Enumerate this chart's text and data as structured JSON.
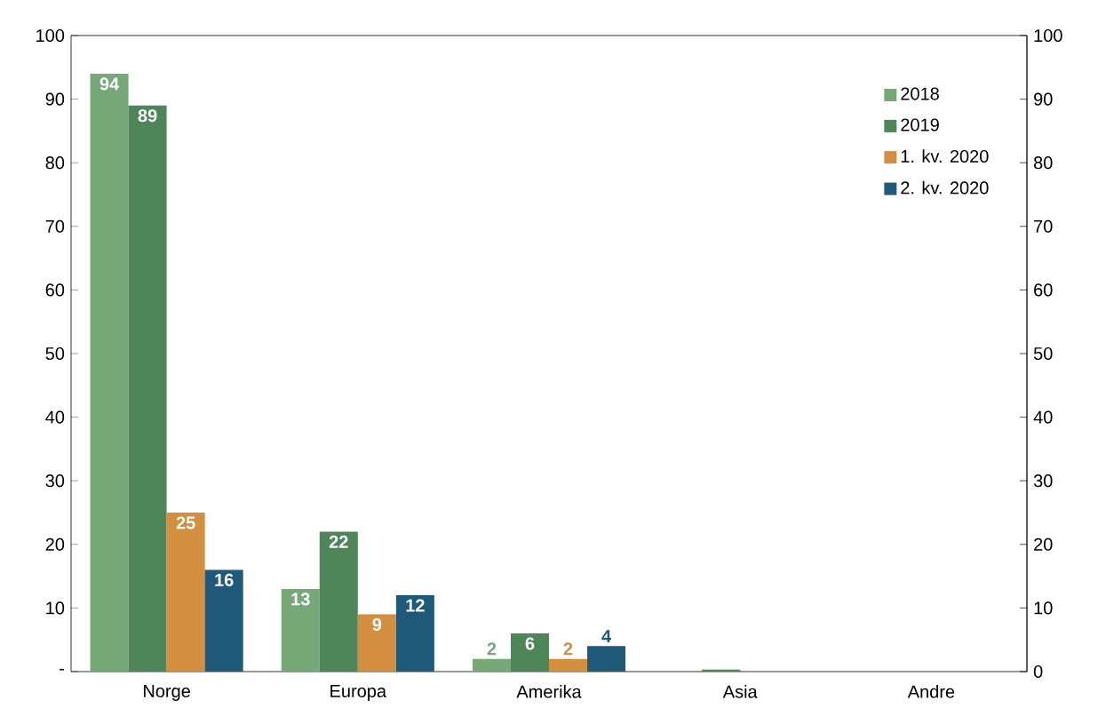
{
  "chart_data": {
    "type": "bar",
    "categories": [
      "Norge",
      "Europa",
      "Amerika",
      "Asia",
      "Andre"
    ],
    "series": [
      {
        "name": "2018",
        "color": "#76a878",
        "values": [
          94,
          13,
          2,
          0,
          0
        ],
        "value_labels": [
          "94",
          "13",
          "2",
          null,
          null
        ]
      },
      {
        "name": "2019",
        "color": "#4e8559",
        "values": [
          89,
          22,
          6,
          0.3,
          0
        ],
        "value_labels": [
          "89",
          "22",
          "6",
          null,
          null
        ]
      },
      {
        "name": "1. kv. 2020",
        "color": "#d48e3f",
        "values": [
          25,
          9,
          2,
          0,
          0
        ],
        "value_labels": [
          "25",
          "9",
          "2",
          null,
          null
        ]
      },
      {
        "name": "2. kv. 2020",
        "color": "#1f5a7b",
        "values": [
          16,
          12,
          4,
          0,
          0
        ],
        "value_labels": [
          "16",
          "12",
          "4",
          null,
          null
        ]
      }
    ],
    "ylim": [
      0,
      100
    ],
    "yticks": [
      {
        "value": 0,
        "label": "-"
      },
      10,
      20,
      30,
      40,
      50,
      60,
      70,
      80,
      90,
      100
    ],
    "y2lim": [
      0,
      100
    ],
    "y2ticks": [
      0,
      10,
      20,
      30,
      40,
      50,
      60,
      70,
      80,
      90,
      100
    ],
    "grid": false,
    "legend": "top right"
  }
}
